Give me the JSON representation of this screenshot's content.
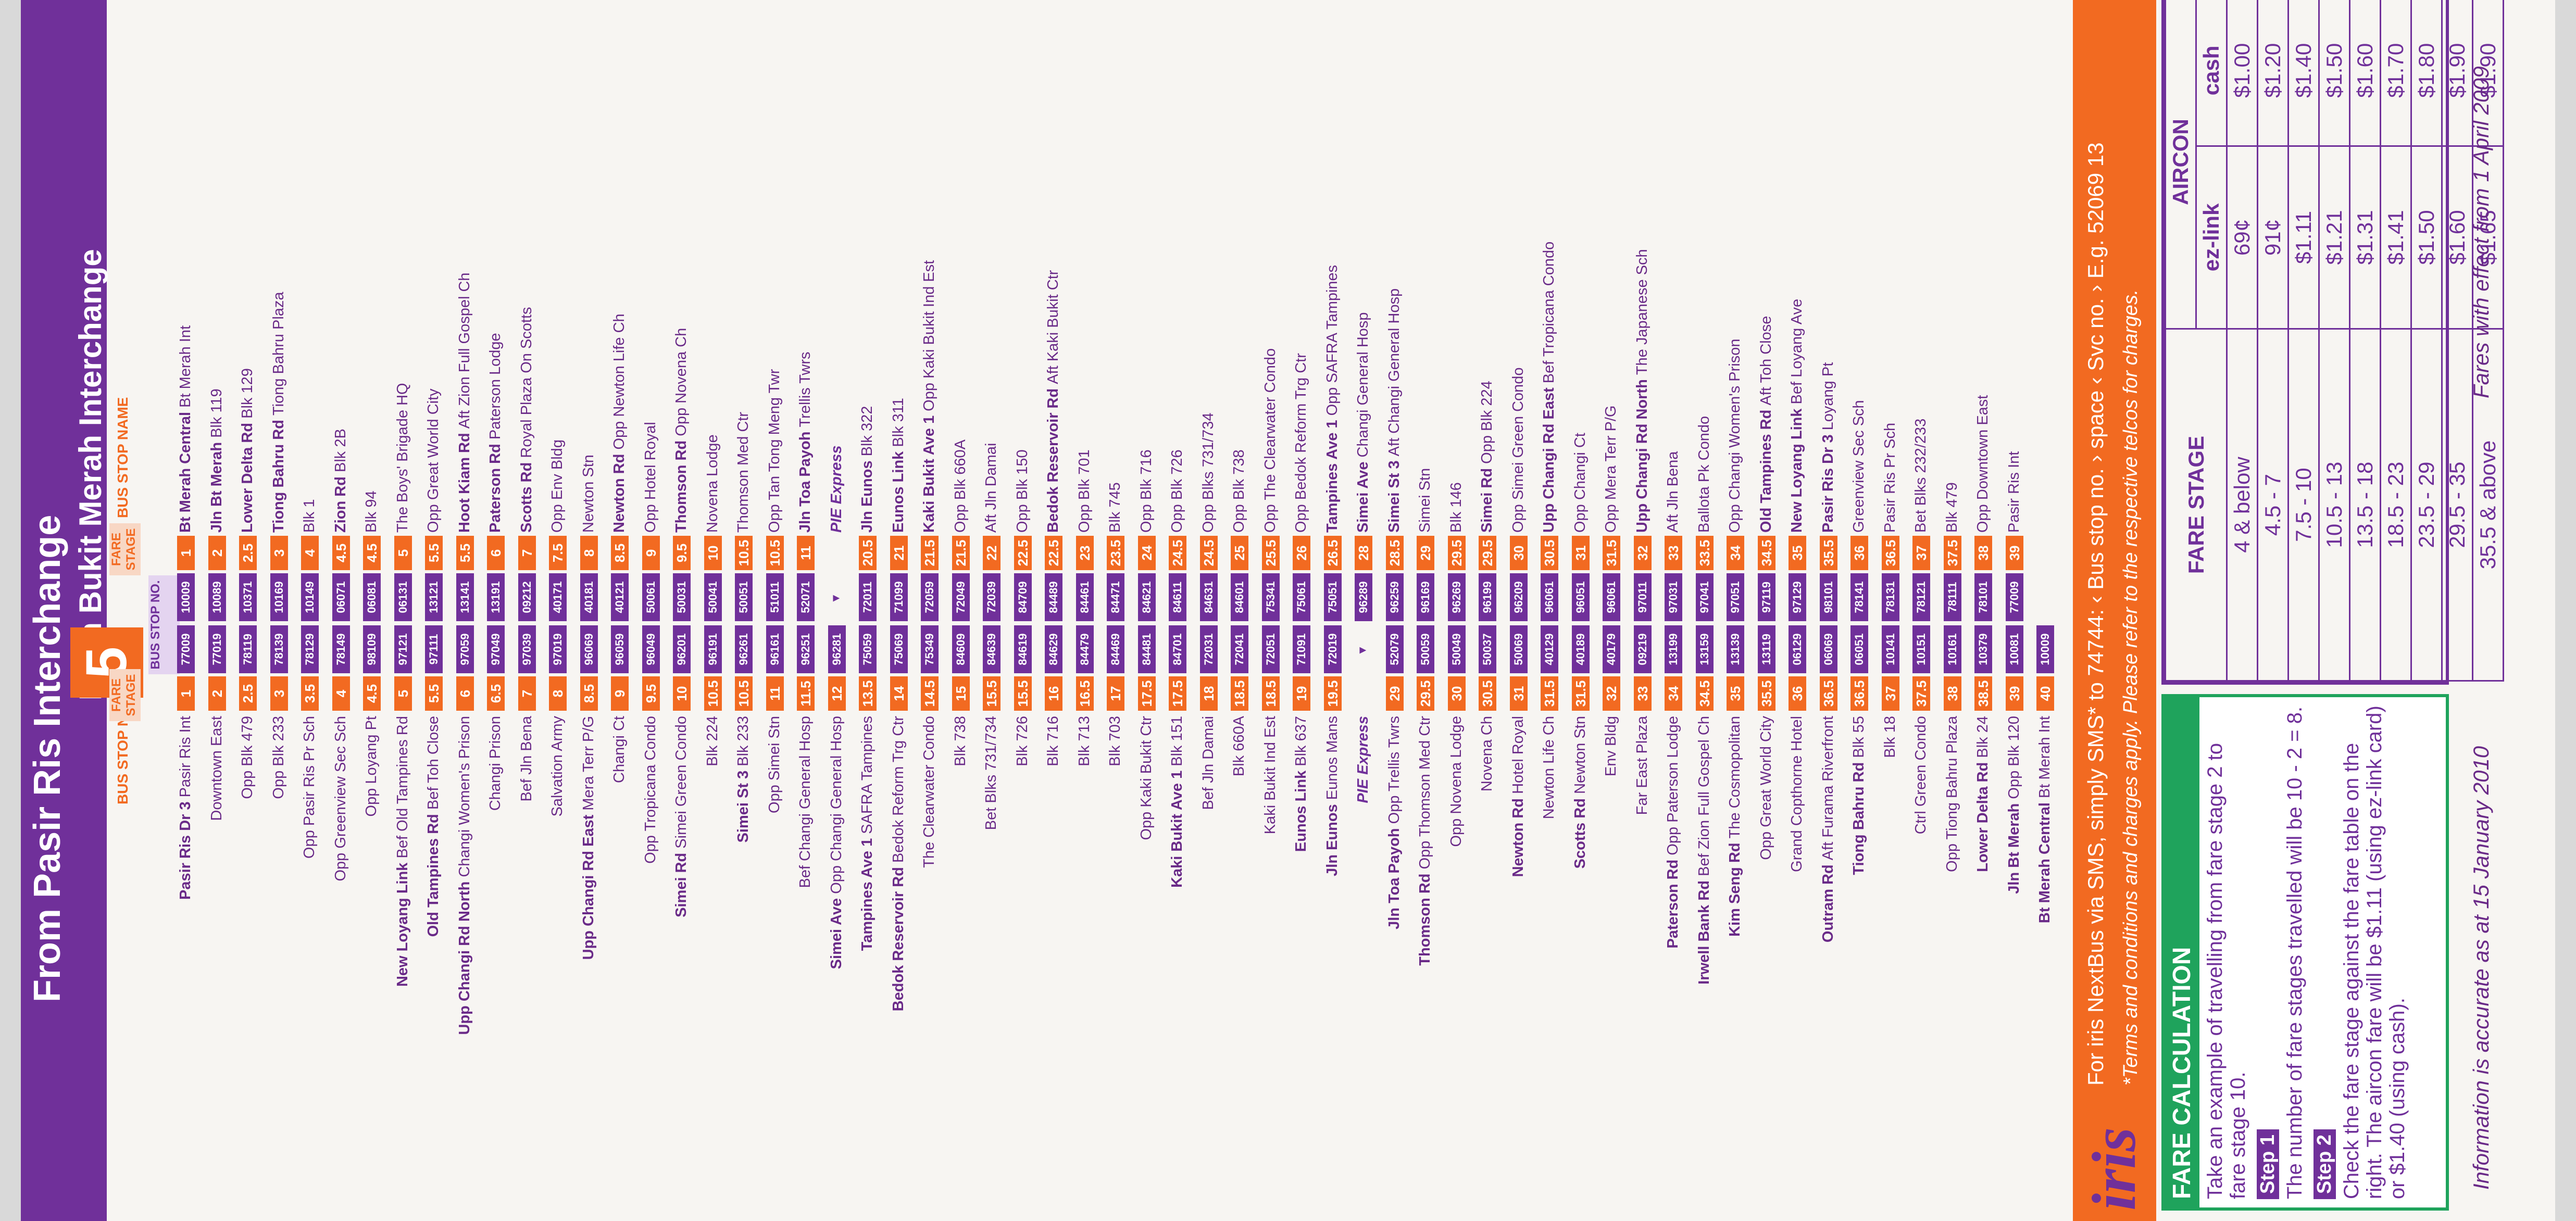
{
  "service_number": "5",
  "left_direction": "From Pasir Ris Interchange",
  "right_direction": "From Bukit Merah Interchange",
  "headers": {
    "left_stop": "BUS STOP NAME",
    "left_fare": "FARE STAGE",
    "bus_stop_no": "BUS STOP NO.",
    "right_fare": "FARE STAGE",
    "right_stop": "BUS STOP NAME"
  },
  "rows": [
    {
      "l_bold": "Pasir Ris Dr 3",
      "l": "Pasir Ris Int",
      "lf": "1",
      "lc": "77009",
      "rc": "10009",
      "rf": "1",
      "r_bold": "Bt Merah Central",
      "r": "Bt Merah Int"
    },
    {
      "l_bold": "",
      "l": "Downtown East",
      "lf": "2",
      "lc": "77019",
      "rc": "10089",
      "rf": "2",
      "r_bold": "Jln Bt Merah",
      "r": "Blk 119"
    },
    {
      "l_bold": "",
      "l": "Opp Blk 479",
      "lf": "2.5",
      "lc": "78119",
      "rc": "10371",
      "rf": "2.5",
      "r_bold": "Lower Delta Rd",
      "r": "Blk 129"
    },
    {
      "l_bold": "",
      "l": "Opp Blk 233",
      "lf": "3",
      "lc": "78139",
      "rc": "10169",
      "rf": "3",
      "r_bold": "Tiong Bahru Rd",
      "r": "Tiong Bahru Plaza"
    },
    {
      "l_bold": "",
      "l": "Opp Pasir Ris Pr Sch",
      "lf": "3.5",
      "lc": "78129",
      "rc": "10149",
      "rf": "4",
      "r_bold": "",
      "r": "Blk 1"
    },
    {
      "l_bold": "",
      "l": "Opp Greenview Sec Sch",
      "lf": "4",
      "lc": "78149",
      "rc": "06071",
      "rf": "4.5",
      "r_bold": "Zion Rd",
      "r": "Blk 2B"
    },
    {
      "l_bold": "",
      "l": "Opp Loyang Pt",
      "lf": "4.5",
      "lc": "98109",
      "rc": "06081",
      "rf": "4.5",
      "r_bold": "",
      "r": "Blk 94"
    },
    {
      "l_bold": "New Loyang Link",
      "l": "Bef Old Tampines Rd",
      "lf": "5",
      "lc": "97121",
      "rc": "06131",
      "rf": "5",
      "r_bold": "",
      "r": "The Boys' Brigade HQ"
    },
    {
      "l_bold": "Old Tampines Rd",
      "l": "Bef Toh Close",
      "lf": "5.5",
      "lc": "97111",
      "rc": "13121",
      "rf": "5.5",
      "r_bold": "",
      "r": "Opp Great World City"
    },
    {
      "l_bold": "Upp Changi Rd North",
      "l": "Changi Women's Prison",
      "lf": "6",
      "lc": "97059",
      "rc": "13141",
      "rf": "5.5",
      "r_bold": "Hoot Kiam Rd",
      "r": "Aft Zion Full Gospel Ch"
    },
    {
      "l_bold": "",
      "l": "Changi Prison",
      "lf": "6.5",
      "lc": "97049",
      "rc": "13191",
      "rf": "6",
      "r_bold": "Paterson Rd",
      "r": "Paterson Lodge"
    },
    {
      "l_bold": "",
      "l": "Bef Jln Bena",
      "lf": "7",
      "lc": "97039",
      "rc": "09212",
      "rf": "7",
      "r_bold": "Scotts Rd",
      "r": "Royal Plaza On Scotts"
    },
    {
      "l_bold": "",
      "l": "Salvation Army",
      "lf": "8",
      "lc": "97019",
      "rc": "40171",
      "rf": "7.5",
      "r_bold": "",
      "r": "Opp Env Bldg"
    },
    {
      "l_bold": "Upp Changi Rd East",
      "l": "Mera Terr P/G",
      "lf": "8.5",
      "lc": "96069",
      "rc": "40181",
      "rf": "8",
      "r_bold": "",
      "r": "Newton Stn"
    },
    {
      "l_bold": "",
      "l": "Changi Ct",
      "lf": "9",
      "lc": "96059",
      "rc": "40121",
      "rf": "8.5",
      "r_bold": "Newton Rd",
      "r": "Opp Newton Life Ch"
    },
    {
      "l_bold": "",
      "l": "Opp Tropicana Condo",
      "lf": "9.5",
      "lc": "96049",
      "rc": "50061",
      "rf": "9",
      "r_bold": "",
      "r": "Opp Hotel Royal"
    },
    {
      "l_bold": "Simei Rd",
      "l": "Simei Green Condo",
      "lf": "10",
      "lc": "96201",
      "rc": "50031",
      "rf": "9.5",
      "r_bold": "Thomson Rd",
      "r": "Opp Novena Ch"
    },
    {
      "l_bold": "",
      "l": "Blk 224",
      "lf": "10.5",
      "lc": "96191",
      "rc": "50041",
      "rf": "10",
      "r_bold": "",
      "r": "Novena Lodge"
    },
    {
      "l_bold": "Simei St 3",
      "l": "Blk 233",
      "lf": "10.5",
      "lc": "96261",
      "rc": "50051",
      "rf": "10.5",
      "r_bold": "",
      "r": "Thomson Med Ctr"
    },
    {
      "l_bold": "",
      "l": "Opp Simei Stn",
      "lf": "11",
      "lc": "96161",
      "rc": "51011",
      "rf": "10.5",
      "r_bold": "",
      "r": "Opp Tan Tong Meng Twr"
    },
    {
      "l_bold": "",
      "l": "Bef Changi General Hosp",
      "lf": "11.5",
      "lc": "96251",
      "rc": "52071",
      "rf": "11",
      "r_bold": "Jln Toa Payoh",
      "r": "Trellis Twrs"
    },
    {
      "l_bold": "Simei Ave",
      "l": "Opp Changi General Hosp",
      "lf": "12",
      "lc": "96281",
      "rc": "",
      "rf": "",
      "r_bold": "",
      "r": "",
      "r_pie": "PIE Express"
    },
    {
      "l_bold": "Tampines Ave 1",
      "l": "SAFRA Tampines",
      "lf": "13.5",
      "lc": "75059",
      "rc": "72011",
      "rf": "20.5",
      "r_bold": "Jln Eunos",
      "r": "Blk 322"
    },
    {
      "l_bold": "Bedok Reservoir Rd",
      "l": "Bedok Reform Trg Ctr",
      "lf": "14",
      "lc": "75069",
      "rc": "71099",
      "rf": "21",
      "r_bold": "Eunos Link",
      "r": "Blk 311"
    },
    {
      "l_bold": "",
      "l": "The Clearwater Condo",
      "lf": "14.5",
      "lc": "75349",
      "rc": "72059",
      "rf": "21.5",
      "r_bold": "Kaki Bukit Ave 1",
      "r": "Opp Kaki Bukit Ind Est"
    },
    {
      "l_bold": "",
      "l": "Blk 738",
      "lf": "15",
      "lc": "84609",
      "rc": "72049",
      "rf": "21.5",
      "r_bold": "",
      "r": "Opp Blk 660A"
    },
    {
      "l_bold": "",
      "l": "Bet Blks 731/734",
      "lf": "15.5",
      "lc": "84639",
      "rc": "72039",
      "rf": "22",
      "r_bold": "",
      "r": "Aft Jln Damai"
    },
    {
      "l_bold": "",
      "l": "Blk 726",
      "lf": "15.5",
      "lc": "84619",
      "rc": "84709",
      "rf": "22.5",
      "r_bold": "",
      "r": "Opp Blk 150"
    },
    {
      "l_bold": "",
      "l": "Blk 716",
      "lf": "16",
      "lc": "84629",
      "rc": "84489",
      "rf": "22.5",
      "r_bold": "Bedok Reservoir Rd",
      "r": "Aft Kaki Bukit Ctr"
    },
    {
      "l_bold": "",
      "l": "Blk 713",
      "lf": "16.5",
      "lc": "84479",
      "rc": "84461",
      "rf": "23",
      "r_bold": "",
      "r": "Opp Blk 701"
    },
    {
      "l_bold": "",
      "l": "Blk 703",
      "lf": "17",
      "lc": "84469",
      "rc": "84471",
      "rf": "23.5",
      "r_bold": "",
      "r": "Blk 745"
    },
    {
      "l_bold": "",
      "l": "Opp Kaki Bukit Ctr",
      "lf": "17.5",
      "lc": "84481",
      "rc": "84621",
      "rf": "24",
      "r_bold": "",
      "r": "Opp Blk 716"
    },
    {
      "l_bold": "Kaki Bukit Ave 1",
      "l": "Blk 151",
      "lf": "17.5",
      "lc": "84701",
      "rc": "84611",
      "rf": "24.5",
      "r_bold": "",
      "r": "Opp Blk 726"
    },
    {
      "l_bold": "",
      "l": "Bef Jln Damai",
      "lf": "18",
      "lc": "72031",
      "rc": "84631",
      "rf": "24.5",
      "r_bold": "",
      "r": "Opp Blks 731/734"
    },
    {
      "l_bold": "",
      "l": "Blk 660A",
      "lf": "18.5",
      "lc": "72041",
      "rc": "84601",
      "rf": "25",
      "r_bold": "",
      "r": "Opp Blk 738"
    },
    {
      "l_bold": "",
      "l": "Kaki Bukit Ind Est",
      "lf": "18.5",
      "lc": "72051",
      "rc": "75341",
      "rf": "25.5",
      "r_bold": "",
      "r": "Opp The Clearwater Condo"
    },
    {
      "l_bold": "Eunos Link",
      "l": "Blk 637",
      "lf": "19",
      "lc": "71091",
      "rc": "75061",
      "rf": "26",
      "r_bold": "",
      "r": "Opp Bedok Reform Trg Ctr"
    },
    {
      "l_bold": "Jln Eunos",
      "l": "Eunos Mans",
      "lf": "19.5",
      "lc": "72019",
      "rc": "75051",
      "rf": "26.5",
      "r_bold": "Tampines Ave 1",
      "r": "Opp SAFRA Tampines"
    },
    {
      "l_bold": "",
      "l": "",
      "lf": "",
      "lc": "",
      "rc": "96289",
      "rf": "28",
      "r_bold": "Simei Ave",
      "r": "Changi General Hosp",
      "l_pie": "PIE Express"
    },
    {
      "l_bold": "Jln Toa Payoh",
      "l": "Opp Trellis Twrs",
      "lf": "29",
      "lc": "52079",
      "rc": "96259",
      "rf": "28.5",
      "r_bold": "Simei St 3",
      "r": "Aft Changi General Hosp"
    },
    {
      "l_bold": "Thomson Rd",
      "l": "Opp Thomson Med Ctr",
      "lf": "29.5",
      "lc": "50059",
      "rc": "96169",
      "rf": "29",
      "r_bold": "",
      "r": "Simei Stn"
    },
    {
      "l_bold": "",
      "l": "Opp Novena Lodge",
      "lf": "30",
      "lc": "50049",
      "rc": "96269",
      "rf": "29.5",
      "r_bold": "",
      "r": "Blk 146"
    },
    {
      "l_bold": "",
      "l": "Novena Ch",
      "lf": "30.5",
      "lc": "50037",
      "rc": "96199",
      "rf": "29.5",
      "r_bold": "Simei Rd",
      "r": "Opp Blk 224"
    },
    {
      "l_bold": "Newton Rd",
      "l": "Hotel Royal",
      "lf": "31",
      "lc": "50069",
      "rc": "96209",
      "rf": "30",
      "r_bold": "",
      "r": "Opp Simei Green Condo"
    },
    {
      "l_bold": "",
      "l": "Newton Life Ch",
      "lf": "31.5",
      "lc": "40129",
      "rc": "96061",
      "rf": "30.5",
      "r_bold": "Upp Changi Rd East",
      "r": "Bef Tropicana Condo"
    },
    {
      "l_bold": "Scotts Rd",
      "l": "Newton Stn",
      "lf": "31.5",
      "lc": "40189",
      "rc": "96051",
      "rf": "31",
      "r_bold": "",
      "r": "Opp Changi Ct"
    },
    {
      "l_bold": "",
      "l": "Env Bldg",
      "lf": "32",
      "lc": "40179",
      "rc": "96061",
      "rf": "31.5",
      "r_bold": "",
      "r": "Opp Mera Terr P/G"
    },
    {
      "l_bold": "",
      "l": "Far East Plaza",
      "lf": "33",
      "lc": "09219",
      "rc": "97011",
      "rf": "32",
      "r_bold": "Upp Changi Rd North",
      "r": "The Japanese Sch"
    },
    {
      "l_bold": "Paterson Rd",
      "l": "Opp Paterson Lodge",
      "lf": "34",
      "lc": "13199",
      "rc": "97031",
      "rf": "33",
      "r_bold": "",
      "r": "Aft Jln Bena"
    },
    {
      "l_bold": "Irwell Bank Rd",
      "l": "Bef Zion Full Gospel Ch",
      "lf": "34.5",
      "lc": "13159",
      "rc": "97041",
      "rf": "33.5",
      "r_bold": "",
      "r": "Ballota Pk Condo"
    },
    {
      "l_bold": "Kim Seng Rd",
      "l": "The Cosmopolitan",
      "lf": "35",
      "lc": "13139",
      "rc": "97051",
      "rf": "34",
      "r_bold": "",
      "r": "Opp Changi Women's Prison"
    },
    {
      "l_bold": "",
      "l": "Opp Great World City",
      "lf": "35.5",
      "lc": "13119",
      "rc": "97119",
      "rf": "34.5",
      "r_bold": "Old Tampines Rd",
      "r": "Aft Toh Close"
    },
    {
      "l_bold": "",
      "l": "Grand Copthorne Hotel",
      "lf": "36",
      "lc": "06129",
      "rc": "97129",
      "rf": "35",
      "r_bold": "New Loyang Link",
      "r": "Bef Loyang Ave"
    },
    {
      "l_bold": "Outram Rd",
      "l": "Aft Furama Riverfront",
      "lf": "36.5",
      "lc": "06069",
      "rc": "98101",
      "rf": "35.5",
      "r_bold": "Pasir Ris Dr 3",
      "r": "Loyang Pt"
    },
    {
      "l_bold": "Tiong Bahru Rd",
      "l": "Blk 55",
      "lf": "36.5",
      "lc": "06051",
      "rc": "78141",
      "rf": "36",
      "r_bold": "",
      "r": "Greenview Sec Sch"
    },
    {
      "l_bold": "",
      "l": "Blk 18",
      "lf": "37",
      "lc": "10141",
      "rc": "78131",
      "rf": "36.5",
      "r_bold": "",
      "r": "Pasir Ris Pr Sch"
    },
    {
      "l_bold": "",
      "l": "Ctrl Green Condo",
      "lf": "37.5",
      "lc": "10151",
      "rc": "78121",
      "rf": "37",
      "r_bold": "",
      "r": "Bet Blks 232/233"
    },
    {
      "l_bold": "",
      "l": "Opp Tiong Bahru Plaza",
      "lf": "38",
      "lc": "10161",
      "rc": "78111",
      "rf": "37.5",
      "r_bold": "",
      "r": "Blk 479"
    },
    {
      "l_bold": "Lower Delta Rd",
      "l": "Blk 24",
      "lf": "38.5",
      "lc": "10379",
      "rc": "78101",
      "rf": "38",
      "r_bold": "",
      "r": "Opp Downtown East"
    },
    {
      "l_bold": "Jln Bt Merah",
      "l": "Opp Blk 120",
      "lf": "39",
      "lc": "10081",
      "rc": "77009",
      "rf": "39",
      "r_bold": "",
      "r": "Pasir Ris Int"
    },
    {
      "l_bold": "Bt Merah Central",
      "l": "Bt Merah Int",
      "lf": "40",
      "lc": "10009",
      "rc": "",
      "rf": "",
      "r_bold": "",
      "r": ""
    }
  ],
  "iris": {
    "logo": "iris",
    "line1": "For iris NextBus via SMS, simply SMS* to 74744: ‹ Bus stop no. › space ‹ Svc no. › E.g. 52069 13",
    "line2": "*Terms and conditions and charges apply. Please refer to the respective telcos for charges."
  },
  "fare_calc": {
    "title": "FARE CALCULATION",
    "intro": "Take an example of travelling from fare stage 2 to fare stage 10.",
    "step1": "Step 1",
    "step1_text": "The number of fare stages travelled will be 10 - 2 = 8.",
    "step2": "Step 2",
    "step2_text": "Check the fare stage against the fare table on the right. The aircon fare will be $1.11 (using ez-link card) or $1.40 (using cash)."
  },
  "fare_table": {
    "col_stage": "FARE STAGE",
    "col_aircon": "AIRCON",
    "col_ez": "ez-link",
    "col_cash": "cash",
    "rows": [
      [
        "4 & below",
        "69¢",
        "$1.00"
      ],
      [
        "4.5 - 7",
        "91¢",
        "$1.20"
      ],
      [
        "7.5 - 10",
        "$1.11",
        "$1.40"
      ],
      [
        "10.5 - 13",
        "$1.21",
        "$1.50"
      ],
      [
        "13.5 - 18",
        "$1.31",
        "$1.60"
      ],
      [
        "18.5 - 23",
        "$1.41",
        "$1.70"
      ],
      [
        "23.5 - 29",
        "$1.50",
        "$1.80"
      ],
      [
        "29.5 - 35",
        "$1.60",
        "$1.90"
      ],
      [
        "35.5 & above",
        "$1.65",
        "$1.90"
      ]
    ]
  },
  "footer_left": "Information is accurate as at 15 January 2010",
  "footer_right": "Fares with effect from 1 April 2009",
  "colors": {
    "purple": "#70309a",
    "orange": "#f26a21",
    "green": "#1fa35c"
  }
}
